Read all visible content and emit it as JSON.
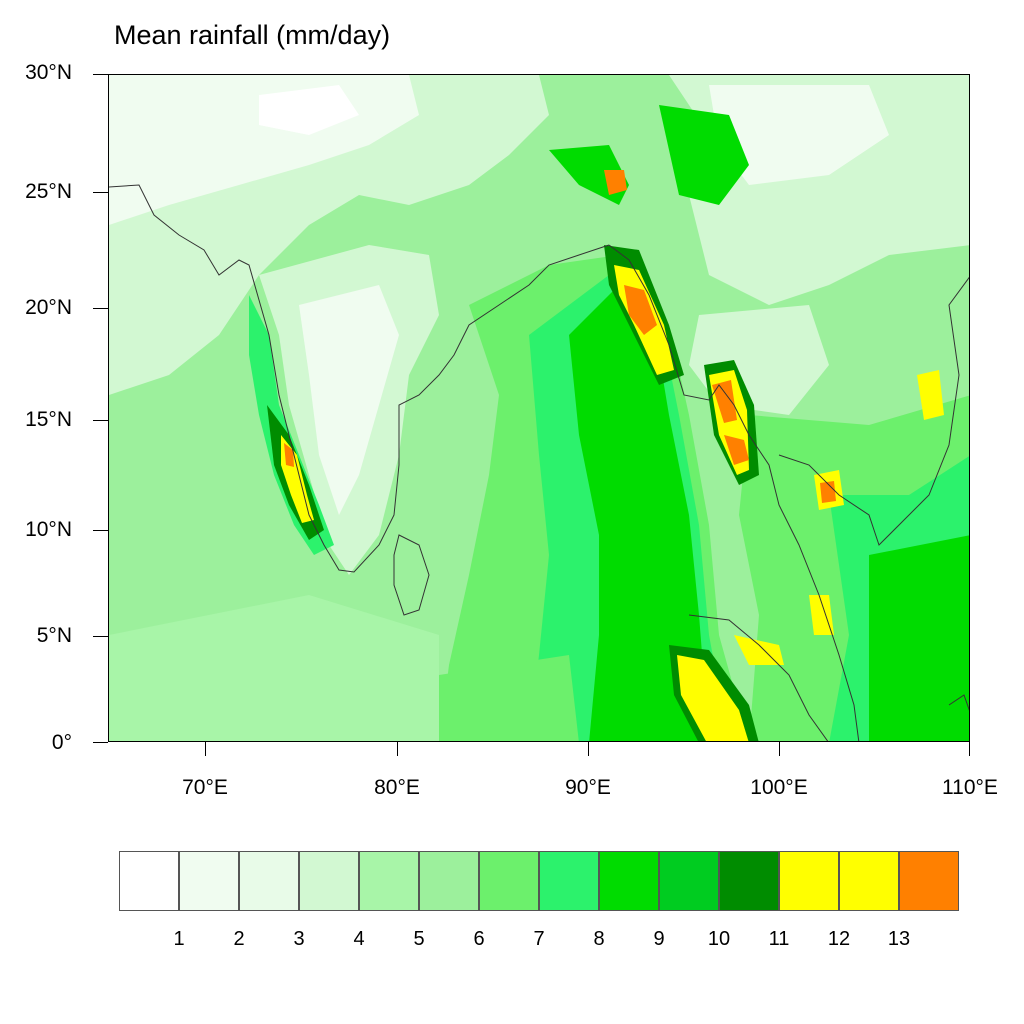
{
  "title": "Mean rainfall (mm/day)",
  "y_axis_labels": [
    "30°N",
    "25°N",
    "20°N",
    "15°N",
    "10°N",
    "5°N",
    "0°"
  ],
  "x_axis_labels": [
    "70°E",
    "80°E",
    "90°E",
    "100°E",
    "110°E"
  ],
  "colorbar": {
    "colors": [
      "#ffffff",
      "#f0fcf0",
      "#e8fbe8",
      "#d2f8d2",
      "#a8f5a8",
      "#9cf09c",
      "#6cf06c",
      "#2cf26c",
      "#00dc00",
      "#00cc20",
      "#008c00",
      "#ffff00",
      "#ffff00",
      "#ff8000"
    ],
    "labels": [
      "1",
      "2",
      "3",
      "4",
      "5",
      "6",
      "7",
      "8",
      "9",
      "10",
      "11",
      "12",
      "13"
    ]
  }
}
